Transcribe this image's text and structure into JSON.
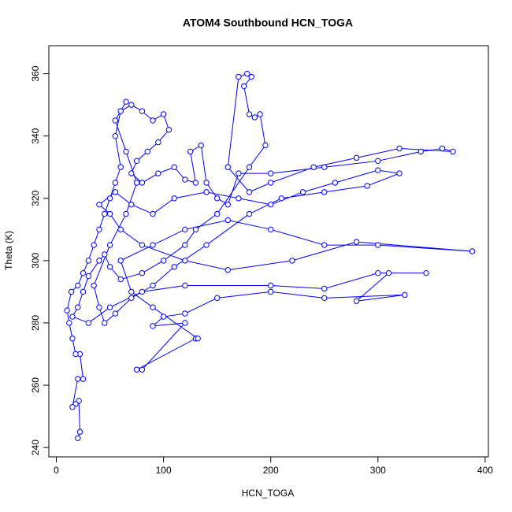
{
  "chart_data": {
    "type": "line",
    "title": "ATOM4 Southbound HCN_TOGA",
    "x_label": "HCN_TOGA",
    "y_label": "Theta (K)",
    "color": "#0000ff",
    "marker": "open-circle",
    "xlim": [
      -7,
      403
    ],
    "ylim": [
      237,
      369
    ],
    "xticks": [
      0,
      100,
      200,
      300,
      400
    ],
    "yticks": [
      240,
      260,
      280,
      300,
      320,
      340,
      360
    ],
    "x": [
      20,
      22,
      21,
      18,
      15,
      20,
      25,
      22,
      18,
      15,
      12,
      10,
      14,
      20,
      25,
      30,
      35,
      40,
      45,
      50,
      55,
      60,
      55,
      60,
      70,
      80,
      90,
      100,
      105,
      95,
      85,
      75,
      70,
      80,
      95,
      110,
      120,
      130,
      125,
      135,
      140,
      150,
      160,
      170,
      200,
      250,
      300,
      340,
      360,
      370,
      320,
      280,
      240,
      200,
      180,
      160,
      170,
      178,
      182,
      175,
      180,
      185,
      190,
      195,
      180,
      150,
      130,
      120,
      100,
      80,
      60,
      50,
      45,
      40,
      30,
      25,
      20,
      15,
      30,
      50,
      80,
      120,
      200,
      250,
      300,
      345,
      310,
      280,
      325,
      250,
      200,
      150,
      120,
      100,
      90,
      120,
      80,
      75,
      130,
      132,
      90,
      70,
      60,
      90,
      120,
      160,
      200,
      250,
      300,
      388,
      280,
      220,
      160,
      120,
      80,
      60,
      50,
      40,
      55,
      70,
      90,
      110,
      140,
      170,
      200,
      230,
      260,
      300,
      320,
      290,
      250,
      210,
      180,
      140,
      110,
      90,
      70,
      55,
      45,
      40,
      35,
      50,
      65,
      75,
      65,
      55,
      65
    ],
    "values": [
      243,
      245,
      255,
      254,
      253,
      262,
      262,
      270,
      270,
      275,
      280,
      284,
      290,
      292,
      296,
      300,
      305,
      310,
      315,
      320,
      325,
      330,
      340,
      348,
      350,
      348,
      345,
      347,
      342,
      338,
      335,
      332,
      328,
      325,
      328,
      330,
      326,
      325,
      335,
      337,
      325,
      320,
      318,
      328,
      328,
      330,
      332,
      335,
      336,
      335,
      336,
      333,
      330,
      325,
      322,
      330,
      359,
      360,
      359,
      356,
      347,
      346,
      347,
      337,
      330,
      315,
      310,
      305,
      300,
      296,
      294,
      298,
      302,
      300,
      295,
      290,
      285,
      282,
      280,
      285,
      290,
      292,
      292,
      291,
      296,
      296,
      296,
      287,
      289,
      288,
      290,
      288,
      283,
      282,
      279,
      280,
      265,
      265,
      275,
      275,
      285,
      290,
      300,
      305,
      310,
      313,
      310,
      305,
      305,
      303,
      306,
      300,
      297,
      300,
      305,
      310,
      315,
      318,
      322,
      318,
      315,
      320,
      322,
      320,
      318,
      322,
      325,
      329,
      328,
      324,
      322,
      320,
      315,
      305,
      298,
      292,
      288,
      283,
      280,
      285,
      292,
      305,
      315,
      325,
      335,
      345,
      351
    ]
  }
}
